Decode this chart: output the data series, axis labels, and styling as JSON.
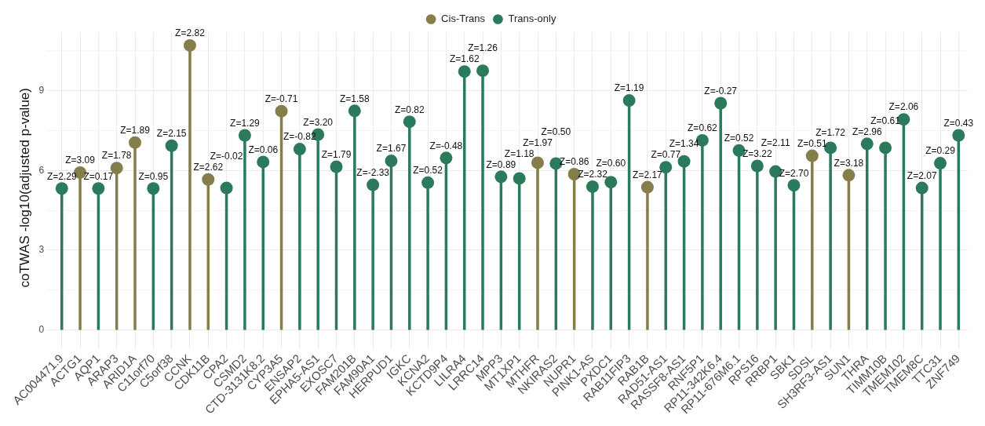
{
  "chart_data": {
    "type": "lollipop",
    "ylabel": "coTWAS -log10(adjusted p-value)",
    "categories": [
      "AC004471.9",
      "ACTG1",
      "AQP1",
      "ARAP3",
      "ARID1A",
      "C11orf70",
      "C5orf38",
      "CCNK",
      "CDK11B",
      "CPA2",
      "CSMD2",
      "CTD-3131K8.2",
      "CYP3A5",
      "ENSAP2",
      "EPHA5-AS1",
      "EXOSC7",
      "FAM201B",
      "FAM90A1",
      "HERPUD1",
      "IGKC",
      "KCNA2",
      "KCTD9P4",
      "LILRA4",
      "LRRC14",
      "MPP3",
      "MT1XP1",
      "MTHFR",
      "NKIRAS2",
      "NUPR1",
      "PINK1-AS",
      "PXDC1",
      "RAB11FIP3",
      "RAB1B",
      "RAD51-AS1",
      "RASSF8-AS1",
      "RNF5P1",
      "RP11-342K6.4",
      "RP11-676M6.1",
      "RPS16",
      "RRBP1",
      "SBK1",
      "SDSL",
      "SH3RF3-AS1",
      "SUN1",
      "THRA",
      "TIMM10B",
      "TMEM102",
      "TMEM8C",
      "TTC31",
      "ZNF749"
    ],
    "series": [
      {
        "name": "Cis-Trans",
        "color": "#857d4a",
        "values": [
          null,
          5.92,
          null,
          6.09,
          7.05,
          null,
          null,
          10.7,
          5.66,
          null,
          null,
          null,
          8.23,
          null,
          null,
          null,
          null,
          null,
          null,
          null,
          null,
          null,
          null,
          null,
          null,
          null,
          6.29,
          null,
          5.86,
          null,
          null,
          null,
          5.37,
          null,
          null,
          null,
          null,
          null,
          null,
          null,
          null,
          6.55,
          null,
          5.82,
          null,
          null,
          null,
          null,
          null,
          null
        ]
      },
      {
        "name": "Trans-only",
        "color": "#2b7a5b",
        "values": [
          5.32,
          null,
          5.32,
          null,
          null,
          5.32,
          6.93,
          null,
          null,
          5.34,
          7.32,
          6.32,
          null,
          6.8,
          7.35,
          6.14,
          8.24,
          5.46,
          6.36,
          7.83,
          5.54,
          6.47,
          9.72,
          9.75,
          5.76,
          5.7,
          null,
          6.26,
          null,
          5.39,
          5.56,
          8.63,
          null,
          6.12,
          6.34,
          7.13,
          8.53,
          6.75,
          6.17,
          5.96,
          5.44,
          null,
          6.85,
          null,
          7.0,
          6.85,
          7.92,
          5.34,
          6.27,
          7.32
        ]
      }
    ],
    "annotations": [
      {
        "text": "Z=2.29",
        "x": "AC004471.9",
        "y": 5.32
      },
      {
        "text": "Z=3.09",
        "x": "ACTG1",
        "y": 5.92
      },
      {
        "text": "Z=0.17",
        "x": "AQP1",
        "y": 5.32
      },
      {
        "text": "Z=1.78",
        "x": "ARAP3",
        "y": 6.09
      },
      {
        "text": "Z=1.89",
        "x": "ARID1A",
        "y": 7.05
      },
      {
        "text": "Z=0.95",
        "x": "C11orf70",
        "y": 5.32
      },
      {
        "text": "Z=2.15",
        "x": "C5orf38",
        "y": 6.93
      },
      {
        "text": "Z=2.82",
        "x": "CCNK",
        "y": 10.7
      },
      {
        "text": "Z=2.62",
        "x": "CDK11B",
        "y": 5.66
      },
      {
        "text": "Z=-0.02",
        "x": "CPA2",
        "y": 5.34
      },
      {
        "text": "Z=1.29",
        "x": "CSMD2",
        "y": 7.32
      },
      {
        "text": "Z=0.06",
        "x": "CTD-3131K8.2",
        "y": 6.32
      },
      {
        "text": "Z=-0.71",
        "x": "CYP3A5",
        "y": 8.23
      },
      {
        "text": "Z=-0.82",
        "x": "ENSAP2",
        "y": 6.8
      },
      {
        "text": "Z=3.20",
        "x": "EPHA5-AS1",
        "y": 7.35
      },
      {
        "text": "Z=1.79",
        "x": "EXOSC7",
        "y": 6.14
      },
      {
        "text": "Z=1.58",
        "x": "FAM201B",
        "y": 8.24
      },
      {
        "text": "Z=-2.33",
        "x": "FAM90A1",
        "y": 5.46
      },
      {
        "text": "Z=1.67",
        "x": "HERPUD1",
        "y": 6.36
      },
      {
        "text": "Z=0.82",
        "x": "IGKC",
        "y": 7.83
      },
      {
        "text": "Z=0.52",
        "x": "KCNA2",
        "y": 5.54
      },
      {
        "text": "Z=-0.48",
        "x": "KCTD9P4",
        "y": 6.47
      },
      {
        "text": "Z=1.62",
        "x": "LILRA4",
        "y": 9.72
      },
      {
        "text": "Z=1.26",
        "x": "LRRC14",
        "y": 9.75
      },
      {
        "text": "Z=0.89",
        "x": "MPP3",
        "y": 5.76
      },
      {
        "text": "Z=1.18",
        "x": "MT1XP1",
        "y": 5.7
      },
      {
        "text": "Z=1.97",
        "x": "MTHFR",
        "y": 6.29
      },
      {
        "text": "Z=0.50",
        "x": "NKIRAS2",
        "y": 6.26
      },
      {
        "text": "Z=0.86",
        "x": "NUPR1",
        "y": 5.86
      },
      {
        "text": "Z=2.32",
        "x": "PINK1-AS",
        "y": 5.39
      },
      {
        "text": "Z=0.60",
        "x": "PXDC1",
        "y": 5.56
      },
      {
        "text": "Z=1.19",
        "x": "RAB11FIP3",
        "y": 8.63
      },
      {
        "text": "Z=2.17",
        "x": "RAB1B",
        "y": 5.37
      },
      {
        "text": "Z=0.77",
        "x": "RAD51-AS1",
        "y": 6.12
      },
      {
        "text": "Z=1.34",
        "x": "RASSF8-AS1",
        "y": 6.34
      },
      {
        "text": "Z=0.62",
        "x": "RNF5P1",
        "y": 7.13
      },
      {
        "text": "Z=-0.27",
        "x": "RP11-342K6.4",
        "y": 8.53
      },
      {
        "text": "Z=0.52",
        "x": "RP11-676M6.1",
        "y": 6.75
      },
      {
        "text": "Z=3.22",
        "x": "RPS16",
        "y": 6.17
      },
      {
        "text": "Z=2.11",
        "x": "RRBP1",
        "y": 5.96
      },
      {
        "text": "Z=2.70",
        "x": "SBK1",
        "y": 5.44
      },
      {
        "text": "Z=0.51",
        "x": "SDSL",
        "y": 6.55
      },
      {
        "text": "Z=1.72",
        "x": "SH3RF3-AS1",
        "y": 6.85
      },
      {
        "text": "Z=3.18",
        "x": "SUN1",
        "y": 5.82
      },
      {
        "text": "Z=2.96",
        "x": "THRA",
        "y": 7.0
      },
      {
        "text": "Z=0.61",
        "x": "TIMM10B",
        "y": 6.85
      },
      {
        "text": "Z=2.06",
        "x": "TMEM102",
        "y": 7.92
      },
      {
        "text": "Z=2.07",
        "x": "TMEM8C",
        "y": 5.34
      },
      {
        "text": "Z=0.29",
        "x": "TTC31",
        "y": 6.27
      },
      {
        "text": "Z=0.43",
        "x": "ZNF749",
        "y": 7.32
      }
    ],
    "ylim": [
      -0.5,
      11.2
    ],
    "yticks": [
      0,
      {
        "value": 1.5,
        "label": null
      },
      3,
      {
        "value": 4.5,
        "label": null
      },
      6,
      {
        "value": 7.5,
        "label": null
      },
      9,
      {
        "value": 10.5,
        "label": null
      }
    ],
    "grid": true,
    "legend": "top",
    "marker": "circle"
  }
}
